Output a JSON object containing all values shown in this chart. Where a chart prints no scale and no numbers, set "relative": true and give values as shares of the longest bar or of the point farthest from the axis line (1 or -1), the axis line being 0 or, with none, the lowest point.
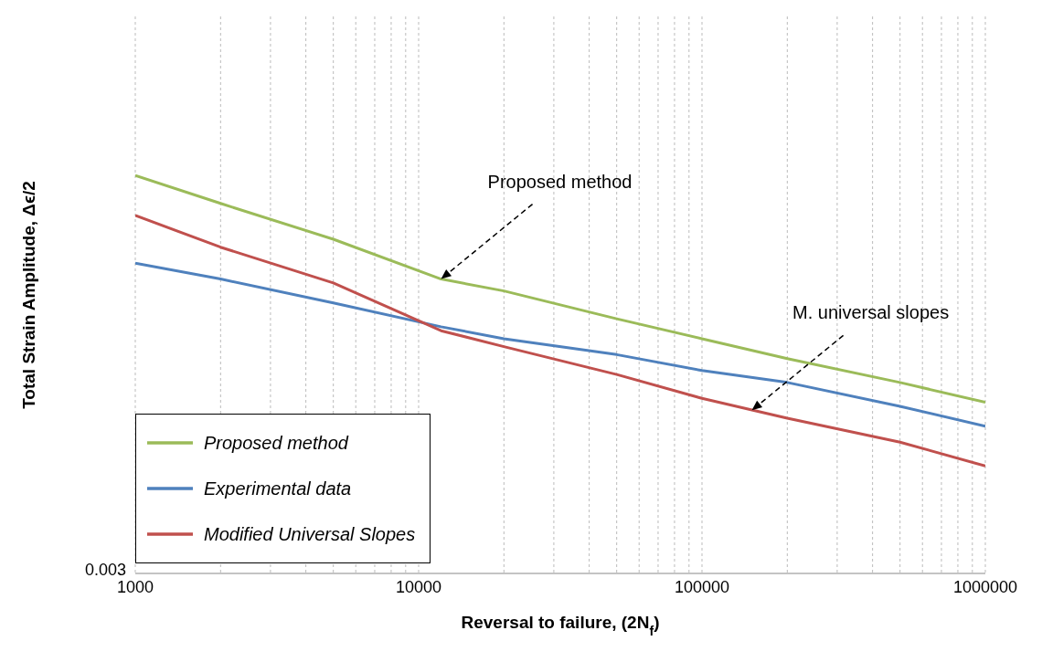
{
  "chart_data": {
    "type": "line",
    "xlabel": "Reversal to failure, (2N$_{f}$)",
    "ylabel": "Total Strain Amplitude, Δϵ/2",
    "relative": true,
    "log": "x",
    "grid": "x",
    "legend": "bottom left",
    "marker": "none",
    "line_style": "solid",
    "xlim": [
      1000,
      1000000
    ],
    "xticks": [
      1000,
      {
        "value": 2000,
        "label": null
      },
      {
        "value": 3000,
        "label": null
      },
      {
        "value": 4000,
        "label": null
      },
      {
        "value": 5000,
        "label": null
      },
      {
        "value": 6000,
        "label": null
      },
      {
        "value": 7000,
        "label": null
      },
      {
        "value": 8000,
        "label": null
      },
      {
        "value": 9000,
        "label": null
      },
      10000,
      {
        "value": 20000,
        "label": null
      },
      {
        "value": 30000,
        "label": null
      },
      {
        "value": 40000,
        "label": null
      },
      {
        "value": 50000,
        "label": null
      },
      {
        "value": 60000,
        "label": null
      },
      {
        "value": 70000,
        "label": null
      },
      {
        "value": 80000,
        "label": null
      },
      {
        "value": 90000,
        "label": null
      },
      100000,
      {
        "value": 200000,
        "label": null
      },
      {
        "value": 300000,
        "label": null
      },
      {
        "value": 400000,
        "label": null
      },
      {
        "value": 500000,
        "label": null
      },
      {
        "value": 600000,
        "label": null
      },
      {
        "value": 700000,
        "label": null
      },
      {
        "value": 800000,
        "label": null
      },
      {
        "value": 900000,
        "label": null
      },
      1000000
    ],
    "x": [
      1000,
      2000,
      5000,
      12000,
      20000,
      50000,
      100000,
      200000,
      500000,
      1000000
    ],
    "series": [
      {
        "name": "Proposed method",
        "color": "#9bbb59",
        "values": [
          1.0,
          0.93,
          0.84,
          0.74,
          0.71,
          0.64,
          0.59,
          0.54,
          0.48,
          0.43
        ]
      },
      {
        "name": "Experimental data",
        "color": "#4f81bd",
        "values": [
          0.78,
          0.74,
          0.68,
          0.62,
          0.59,
          0.55,
          0.51,
          0.48,
          0.42,
          0.37
        ]
      },
      {
        "name": "Modified Universal Slopes",
        "color": "#c0504d",
        "values": [
          0.9,
          0.82,
          0.73,
          0.61,
          0.57,
          0.5,
          0.44,
          0.39,
          0.33,
          0.27
        ]
      }
    ],
    "annotations": [
      {
        "text": "Proposed method",
        "x": 12000,
        "y": 0.74
      },
      {
        "text": "M. universal slopes",
        "x": 150000,
        "y": 0.41
      },
      "0.003"
    ]
  }
}
